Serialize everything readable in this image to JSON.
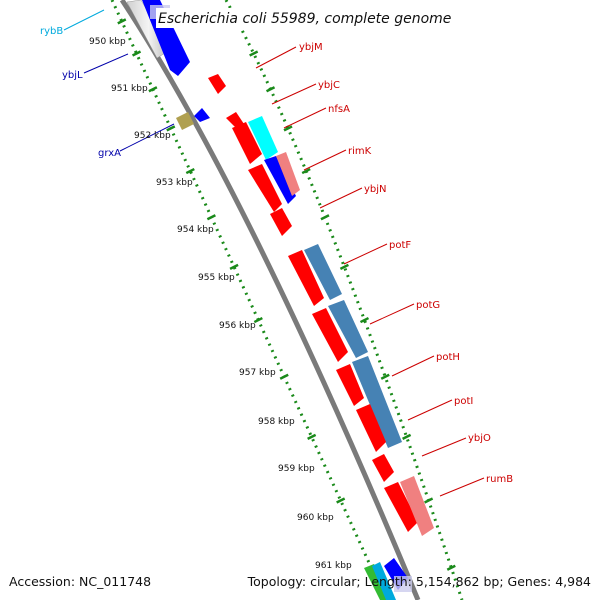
{
  "title": "Escherichia coli 55989, complete genome",
  "accession_label": "Accession: NC_011748",
  "stats_label": "Topology: circular; Length: 5,154,862 bp; Genes: 4,984",
  "colors": {
    "cds": "#ff0000",
    "cds_blue": "#0000ff",
    "rna_cyan": "#00d0ff",
    "cog_steel": "#4682b4",
    "cog_pink": "#f08080",
    "cog_cyan": "#00ffff",
    "cog_olive": "#b0a050",
    "label_red": "#cc0000",
    "label_blue": "#0000aa",
    "label_cyan": "#00aadd",
    "ticks": "#1a8a1a"
  },
  "scale": {
    "labels": [
      "950 kbp",
      "951 kbp",
      "952 kbp",
      "953 kbp",
      "954 kbp",
      "955 kbp",
      "956 kbp",
      "957 kbp",
      "958 kbp",
      "959 kbp",
      "960 kbp",
      "961 kbp"
    ]
  },
  "gene_labels": [
    {
      "name": "rybB",
      "color": "cyan"
    },
    {
      "name": "ybjL",
      "color": "blue"
    },
    {
      "name": "grxA",
      "color": "blue"
    },
    {
      "name": "ybjM",
      "color": "red"
    },
    {
      "name": "ybjC",
      "color": "red"
    },
    {
      "name": "nfsA",
      "color": "red"
    },
    {
      "name": "rimK",
      "color": "red"
    },
    {
      "name": "ybjN",
      "color": "red"
    },
    {
      "name": "potF",
      "color": "red"
    },
    {
      "name": "potG",
      "color": "red"
    },
    {
      "name": "potH",
      "color": "red"
    },
    {
      "name": "potI",
      "color": "red"
    },
    {
      "name": "ybjO",
      "color": "red"
    },
    {
      "name": "rumB",
      "color": "red"
    }
  ]
}
